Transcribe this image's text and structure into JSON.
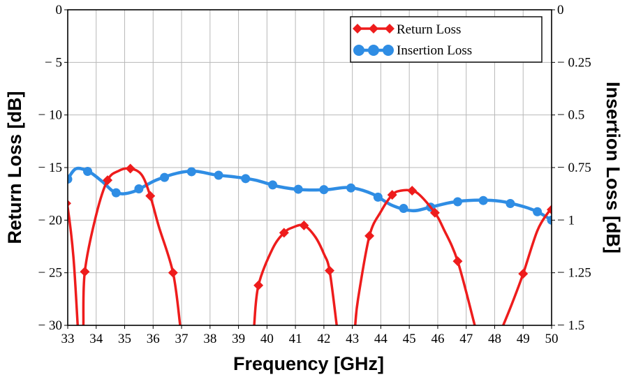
{
  "chart_data": {
    "type": "line",
    "xlabel": "Frequency [GHz]",
    "ylabel_left": "Return Loss [dB]",
    "ylabel_right": "Insertion Loss [dB]",
    "xlim": [
      33,
      50
    ],
    "ylim_left": [
      -30,
      0
    ],
    "ylim_right": [
      -1.5,
      0
    ],
    "x_ticks": [
      "33",
      "34",
      "35",
      "36",
      "37",
      "38",
      "39",
      "40",
      "41",
      "42",
      "43",
      "44",
      "45",
      "46",
      "47",
      "48",
      "49",
      "50"
    ],
    "y_left_ticks": [
      "0",
      "− 5",
      "− 10",
      "− 15",
      "− 20",
      "− 25",
      "− 30"
    ],
    "y_right_ticks": [
      "0",
      "− 0.25",
      "− 0.5",
      "− 0.75",
      "− 1",
      "− 1.25",
      "− 1.5"
    ],
    "grid": true,
    "legend_position": "top-right",
    "series": [
      {
        "name": "Return Loss",
        "axis": "left",
        "color": "#ee1c1c",
        "marker": "diamond",
        "segments": [
          [
            [
              32.9,
              -18.0
            ],
            [
              33.0,
              -18.8
            ],
            [
              33.2,
              -23.5
            ],
            [
              33.35,
              -30.0
            ]
          ],
          [
            [
              33.55,
              -30.0
            ],
            [
              33.6,
              -24.9
            ],
            [
              34.0,
              -19.5
            ],
            [
              34.4,
              -16.2
            ],
            [
              34.8,
              -15.3
            ],
            [
              35.2,
              -15.1
            ],
            [
              35.6,
              -15.7
            ],
            [
              35.9,
              -17.7
            ],
            [
              36.2,
              -20.6
            ],
            [
              36.7,
              -25.0
            ],
            [
              36.95,
              -30.0
            ]
          ],
          [
            [
              39.55,
              -30.0
            ],
            [
              39.7,
              -26.2
            ],
            [
              40.2,
              -22.7
            ],
            [
              40.6,
              -21.2
            ],
            [
              40.9,
              -20.7
            ],
            [
              41.3,
              -20.5
            ],
            [
              41.7,
              -21.6
            ],
            [
              42.0,
              -23.2
            ],
            [
              42.2,
              -24.8
            ],
            [
              42.45,
              -30.0
            ]
          ],
          [
            [
              43.1,
              -30.0
            ],
            [
              43.2,
              -27.5
            ],
            [
              43.6,
              -21.5
            ],
            [
              44.0,
              -19.2
            ],
            [
              44.4,
              -17.6
            ],
            [
              44.7,
              -17.2
            ],
            [
              45.1,
              -17.2
            ],
            [
              45.4,
              -17.7
            ],
            [
              45.9,
              -19.3
            ],
            [
              46.2,
              -20.8
            ],
            [
              46.7,
              -23.9
            ],
            [
              47.3,
              -30.0
            ]
          ],
          [
            [
              48.3,
              -30.0
            ],
            [
              48.6,
              -28.0
            ],
            [
              49.0,
              -25.1
            ],
            [
              49.5,
              -21.0
            ],
            [
              49.9,
              -19.2
            ],
            [
              50.0,
              -19.0
            ]
          ]
        ]
      },
      {
        "name": "Insertion Loss",
        "axis": "right",
        "color": "#2f8de4",
        "marker": "circle",
        "points": [
          [
            33.0,
            -0.805
          ],
          [
            33.3,
            -0.755
          ],
          [
            33.75,
            -0.77
          ],
          [
            34.2,
            -0.815
          ],
          [
            34.7,
            -0.87
          ],
          [
            35.3,
            -0.865
          ],
          [
            36.1,
            -0.81
          ],
          [
            36.9,
            -0.775
          ],
          [
            37.5,
            -0.768
          ],
          [
            38.2,
            -0.785
          ],
          [
            38.9,
            -0.795
          ],
          [
            39.6,
            -0.81
          ],
          [
            40.4,
            -0.84
          ],
          [
            41.2,
            -0.855
          ],
          [
            42.1,
            -0.855
          ],
          [
            42.9,
            -0.845
          ],
          [
            43.7,
            -0.875
          ],
          [
            44.4,
            -0.93
          ],
          [
            45.1,
            -0.955
          ],
          [
            45.7,
            -0.94
          ],
          [
            46.5,
            -0.915
          ],
          [
            47.3,
            -0.905
          ],
          [
            48.2,
            -0.91
          ],
          [
            49.0,
            -0.935
          ],
          [
            49.5,
            -0.96
          ],
          [
            50.0,
            -1.0
          ]
        ],
        "marker_x": [
          33.0,
          33.7,
          34.7,
          35.5,
          36.4,
          37.35,
          38.3,
          39.25,
          40.2,
          41.1,
          42.0,
          42.95,
          43.9,
          44.8,
          45.75,
          46.7,
          47.6,
          48.55,
          49.5,
          50.0
        ]
      }
    ],
    "return_loss_marker_x": [
      32.95,
      33.6,
      34.4,
      35.2,
      35.9,
      36.7,
      39.7,
      40.6,
      41.3,
      42.2,
      43.6,
      44.4,
      45.1,
      45.9,
      46.7,
      49.0,
      50.0
    ]
  }
}
